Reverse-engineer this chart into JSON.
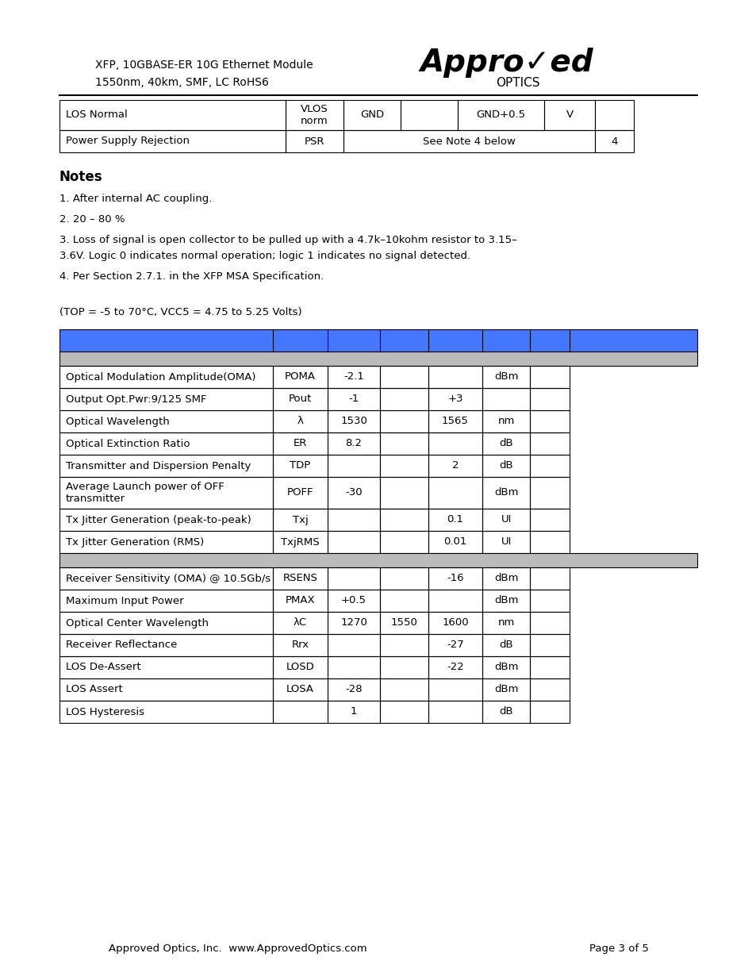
{
  "page_width": 9.54,
  "page_height": 12.35,
  "bg_color": "#ffffff",
  "header_line1": "XFP, 10GBASE-ER 10G Ethernet Module",
  "header_line2": "1550nm, 40km, SMF, LC RoHS6",
  "notes_title": "Notes",
  "note1": "1. After internal AC coupling.",
  "note2": "2. 20 – 80 %",
  "note3a": "3. Loss of signal is open collector to be pulled up with a 4.7k–10kohm resistor to 3.15–",
  "note3b": "3.6V. Logic 0 indicates normal operation; logic 1 indicates no signal detected.",
  "note4": "4. Per Section 2.7.1. in the XFP MSA Specification.",
  "conditions": "(TOP = -5 to 70°C, VCC5 = 4.75 to 5.25 Volts)",
  "main_table_header_color": "#4477ff",
  "main_table_subheader_color": "#bbbbbb",
  "footer_left": "Approved Optics, Inc.  www.ApprovedOptics.com",
  "footer_right": "Page 3 of 5",
  "top_table_rows": [
    [
      "LOS Normal",
      "VLOS\nnorm",
      "GND",
      "",
      "GND+0.5",
      "V",
      ""
    ],
    [
      "Power Supply Rejection",
      "PSR",
      "See Note 4 below",
      "",
      "",
      "",
      "4"
    ]
  ],
  "tx_rows": [
    [
      "Optical Modulation Amplitude(OMA)",
      "POMA",
      "-2.1",
      "",
      "",
      "dBm",
      ""
    ],
    [
      "Output Opt.Pwr:9/125 SMF",
      "Pout",
      "-1",
      "",
      "+3",
      "",
      ""
    ],
    [
      "Optical Wavelength",
      "λ",
      "1530",
      "",
      "1565",
      "nm",
      ""
    ],
    [
      "Optical Extinction Ratio",
      "ER",
      "8.2",
      "",
      "",
      "dB",
      ""
    ],
    [
      "Transmitter and Dispersion Penalty",
      "TDP",
      "",
      "",
      "2",
      "dB",
      ""
    ],
    [
      "Average Launch power of OFF\ntransmitter",
      "POFF",
      "-30",
      "",
      "",
      "dBm",
      ""
    ],
    [
      "Tx Jitter Generation (peak-to-peak)",
      "Txj",
      "",
      "",
      "0.1",
      "UI",
      ""
    ],
    [
      "Tx Jitter Generation (RMS)",
      "TxjRMS",
      "",
      "",
      "0.01",
      "UI",
      ""
    ]
  ],
  "rx_rows": [
    [
      "Receiver Sensitivity (OMA) @ 10.5Gb/s",
      "RSENS",
      "",
      "",
      "-16",
      "dBm",
      ""
    ],
    [
      "Maximum Input Power",
      "PMAX",
      "+0.5",
      "",
      "",
      "dBm",
      ""
    ],
    [
      "Optical Center Wavelength",
      "λC",
      "1270",
      "1550",
      "1600",
      "nm",
      ""
    ],
    [
      "Receiver Reflectance",
      "Rrx",
      "",
      "",
      "-27",
      "dB",
      ""
    ],
    [
      "LOS De-Assert",
      "LOSD",
      "",
      "",
      "-22",
      "dBm",
      ""
    ],
    [
      "LOS Assert",
      "LOSA",
      "-28",
      "",
      "",
      "dBm",
      ""
    ],
    [
      "LOS Hysteresis",
      "",
      "1",
      "",
      "",
      "dB",
      ""
    ]
  ]
}
